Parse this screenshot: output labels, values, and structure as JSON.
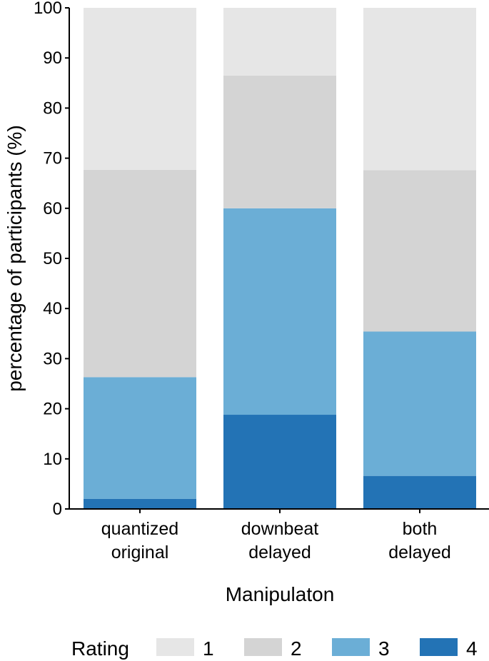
{
  "chart_data": {
    "type": "bar",
    "stacked": true,
    "categories": [
      [
        "quantized",
        "original"
      ],
      [
        "downbeat",
        "delayed"
      ],
      [
        "both",
        "delayed"
      ]
    ],
    "series": [
      {
        "name": "4",
        "color": "#2373b5",
        "values": [
          2.0,
          18.8,
          6.6
        ]
      },
      {
        "name": "3",
        "color": "#6baed6",
        "values": [
          24.3,
          41.2,
          28.8
        ]
      },
      {
        "name": "2",
        "color": "#d4d4d4",
        "values": [
          41.4,
          26.5,
          32.2
        ]
      },
      {
        "name": "1",
        "color": "#e6e6e6",
        "values": [
          32.3,
          13.5,
          32.4
        ]
      }
    ],
    "xlabel": "Manipulaton",
    "ylabel": "percentage of participants (%)",
    "ylim": [
      0,
      100
    ],
    "yticks": [
      0,
      10,
      20,
      30,
      40,
      50,
      60,
      70,
      80,
      90,
      100
    ],
    "legend": {
      "title": "Rating",
      "placement": "bottom",
      "entries": [
        "1",
        "2",
        "3",
        "4"
      ]
    }
  }
}
